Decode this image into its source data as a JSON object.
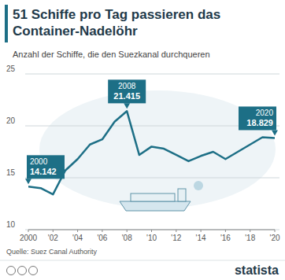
{
  "chart_data": {
    "type": "line",
    "title": "51 Schiffe pro Tag passieren das Container-Nadelöhr",
    "subtitle": "Anzahl der Schiffe, die den Suezkanal durchqueren",
    "source": "Quelle: Suez Canal Authority",
    "brand": "statista",
    "color": "#1d6f86",
    "x": [
      2000,
      2001,
      2002,
      2003,
      2004,
      2005,
      2006,
      2007,
      2008,
      2009,
      2010,
      2011,
      2012,
      2013,
      2014,
      2015,
      2016,
      2017,
      2018,
      2019,
      2020
    ],
    "values": [
      14.142,
      14.0,
      13.4,
      15.7,
      16.8,
      18.2,
      18.7,
      20.4,
      21.415,
      17.2,
      18.0,
      17.8,
      17.2,
      16.6,
      17.1,
      17.5,
      16.8,
      17.5,
      18.2,
      18.9,
      18.829
    ],
    "xlim": [
      2000,
      2020
    ],
    "xticks": [
      {
        "value": 2000,
        "label": "2000"
      },
      {
        "value": 2002,
        "label": "'02"
      },
      {
        "value": 2004,
        "label": "'04"
      },
      {
        "value": 2006,
        "label": "'06"
      },
      {
        "value": 2008,
        "label": "'08"
      },
      {
        "value": 2010,
        "label": "'10"
      },
      {
        "value": 2012,
        "label": "'12"
      },
      {
        "value": 2014,
        "label": "'14"
      },
      {
        "value": 2016,
        "label": "'16"
      },
      {
        "value": 2018,
        "label": "'18"
      },
      {
        "value": 2020,
        "label": "'20"
      }
    ],
    "ylim": [
      10,
      25
    ],
    "yticks": [
      10,
      15,
      20,
      25
    ],
    "grid": true,
    "annotations": [
      {
        "x": 2000,
        "y": 14.142,
        "year": "2000",
        "label": "14.142"
      },
      {
        "x": 2008,
        "y": 21.415,
        "year": "2008",
        "label": "21.415"
      },
      {
        "x": 2020,
        "y": 18.829,
        "year": "2020",
        "label": "18.829"
      }
    ]
  }
}
